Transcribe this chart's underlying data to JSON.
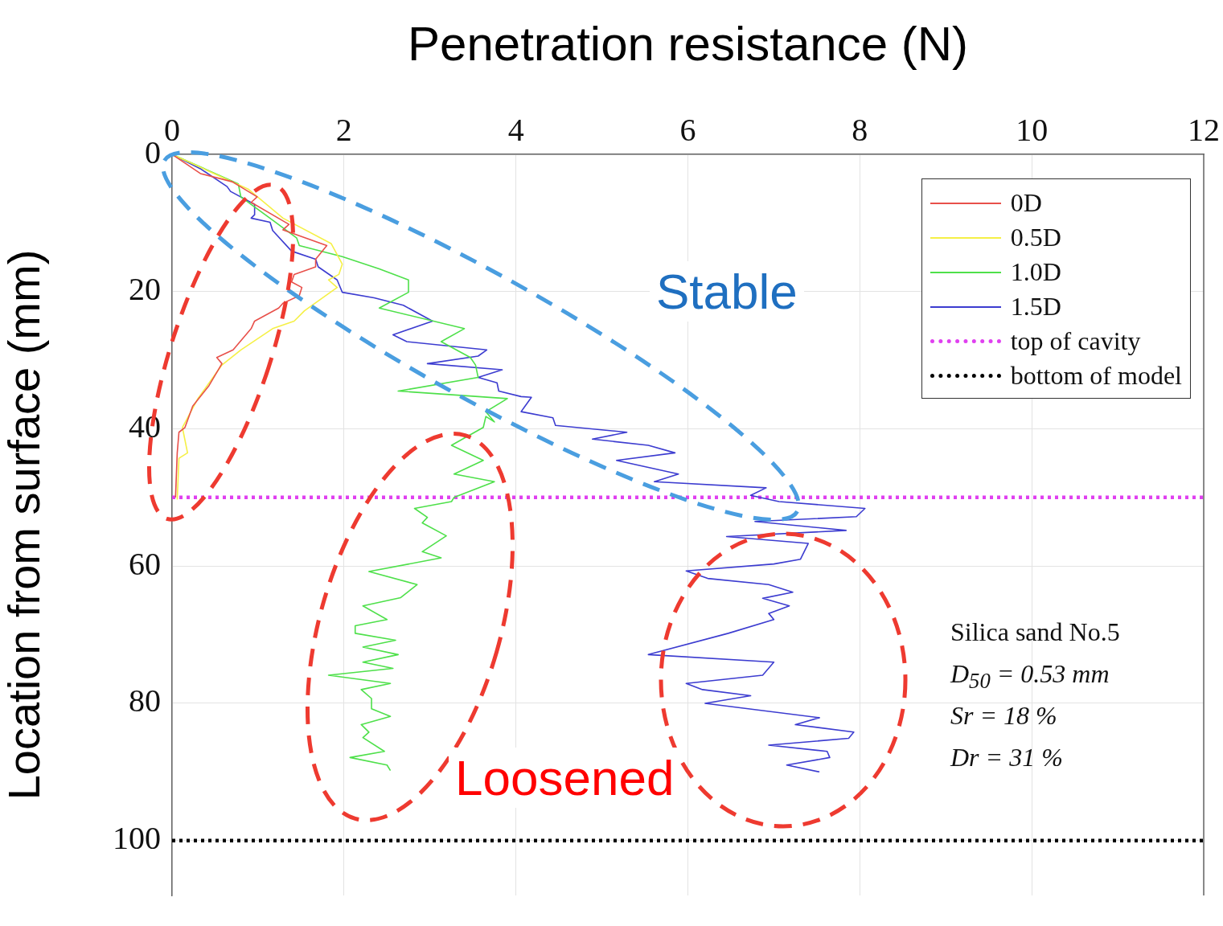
{
  "chart_data": {
    "type": "line",
    "xlabel": "Penetration resistance (N)",
    "ylabel": "Location from surface (mm)",
    "xlim": [
      0,
      12
    ],
    "xticks": [
      0,
      2,
      4,
      6,
      8,
      10,
      12
    ],
    "ylim": [
      108,
      0
    ],
    "yticks": [
      0,
      20,
      40,
      60,
      80,
      100
    ],
    "grid": true,
    "legend": "top right",
    "marker": "none",
    "annotations": [
      "Stable",
      "Loosened",
      "Silica sand No.5",
      "D$_{50}$ = 0.53 mm",
      "Sr = 18 %",
      "Dr = 31 %"
    ],
    "series": [
      {
        "name": "0D",
        "color": "#e8504a",
        "line_style": "solid",
        "x": [
          0,
          0.33,
          0.7,
          0.99,
          0.92,
          1.36,
          1.29,
          1.8,
          1.67,
          1.67,
          1.42,
          1.39,
          1.51,
          1.48,
          1.29,
          1.24,
          0.96,
          0.92,
          0.71,
          0.52,
          0.58,
          0.43,
          0.24,
          0.15,
          0.08,
          0.06,
          0.04
        ],
        "values": [
          0,
          2.8,
          4,
          6.2,
          7,
          10.2,
          11,
          13.3,
          15.3,
          16.4,
          17.5,
          18.6,
          19.4,
          20.6,
          21.7,
          22.4,
          24.3,
          25.4,
          28.5,
          29.6,
          30.5,
          33.7,
          36.7,
          39.8,
          40.5,
          43.5,
          50
        ]
      },
      {
        "name": "0.5D",
        "color": "#f5f046",
        "line_style": "solid",
        "x": [
          0,
          0.89,
          1.29,
          1.85,
          1.98,
          1.94,
          1.82,
          1.92,
          1.54,
          1.42,
          1.17,
          0.8,
          0.58,
          0.3,
          0.12,
          0.18,
          0.08,
          0.06
        ],
        "values": [
          0,
          5.1,
          9.3,
          13,
          16,
          17.5,
          18.3,
          19.4,
          22.8,
          24.3,
          25.4,
          28.5,
          30.7,
          35.6,
          39.8,
          43.5,
          44.3,
          50.3
        ]
      },
      {
        "name": "1.0D",
        "color": "#4ee04a",
        "line_style": "solid",
        "x": [
          0,
          0.77,
          0.8,
          1.17,
          1.45,
          1.48,
          1.98,
          2.41,
          2.75,
          2.75,
          2.41,
          3.4,
          3.13,
          3.47,
          3.53,
          3.56,
          2.63,
          3.9,
          3.65,
          3.75,
          3.65,
          3.62,
          3.25,
          3.62,
          3.28,
          3.75,
          3.28,
          3.25,
          2.82,
          2.97,
          2.91,
          3.19,
          2.91,
          3.13,
          2.29,
          2.85,
          2.66,
          2.22,
          2.5,
          2.13,
          2.13,
          2.6,
          2.22,
          2.63,
          2.22,
          2.57,
          1.82,
          2.54,
          2.2,
          2.32,
          2.32,
          2.54,
          2.2,
          2.29,
          2.22,
          2.47,
          2.07,
          2.5,
          2.54
        ],
        "values": [
          0,
          4.3,
          6.2,
          9.6,
          12.2,
          13.3,
          14.9,
          16.7,
          18.3,
          20.1,
          22.4,
          25.4,
          27.3,
          29.6,
          30.7,
          32.5,
          34.5,
          35.6,
          37.5,
          39,
          38.2,
          39.8,
          42.4,
          44.6,
          46.6,
          47.7,
          50,
          50.6,
          51.6,
          52.9,
          53.7,
          55.6,
          57.9,
          58.8,
          60.8,
          62.7,
          64.6,
          65.8,
          67.8,
          68.7,
          69.8,
          70.8,
          71.8,
          72.9,
          74,
          74.9,
          75.9,
          77.1,
          78,
          79.3,
          80.8,
          81.9,
          83.1,
          84.2,
          85,
          87,
          87.9,
          89,
          89.8
        ]
      },
      {
        "name": "1.5D",
        "color": "#3c3cd0",
        "line_style": "solid",
        "x": [
          0,
          0.33,
          0.64,
          0.68,
          0.96,
          0.96,
          0.92,
          1.14,
          1.17,
          1.39,
          1.67,
          1.7,
          1.92,
          1.98,
          2.35,
          2.69,
          3.03,
          2.57,
          2.73,
          3.66,
          3.56,
          2.97,
          3.84,
          3.56,
          3.78,
          3.8,
          4.06,
          4.18,
          4.06,
          4.43,
          4.46,
          5.29,
          4.89,
          5.54,
          5.85,
          5.17,
          5.89,
          5.61,
          6.91,
          6.73,
          7.06,
          8.06,
          7.96,
          6.78,
          7.84,
          6.45,
          7.4,
          7.31,
          7,
          5.98,
          6.23,
          6.94,
          7.22,
          6.87,
          7.18,
          6.94,
          7,
          6.47,
          5.54,
          7,
          6.87,
          5.98,
          6.17,
          6.73,
          6.2,
          7.53,
          7.25,
          7.93,
          7.87,
          6.94,
          7.62,
          7.65,
          7.15,
          7.53
        ],
        "values": [
          0,
          2.1,
          4.7,
          5.4,
          7.3,
          8.8,
          9.3,
          9.9,
          11.1,
          14.1,
          15.3,
          16.4,
          18.3,
          20.1,
          20.9,
          22,
          24.3,
          26.3,
          27.3,
          28.5,
          29.4,
          30.5,
          31.4,
          32.5,
          33.3,
          34.5,
          35.3,
          35.4,
          37.5,
          38.4,
          39.5,
          40.5,
          41.5,
          42.4,
          43.5,
          44.6,
          46.6,
          47.7,
          48.6,
          49.7,
          50.6,
          51.6,
          52.8,
          53.5,
          54.8,
          55.7,
          56.7,
          59,
          59.7,
          60.7,
          61.8,
          62.7,
          63.8,
          64.7,
          65.8,
          66.9,
          67.8,
          69.8,
          72.9,
          74,
          75.9,
          77.1,
          78,
          78.9,
          80,
          82.1,
          83.1,
          84.2,
          85.1,
          86.1,
          87,
          87.9,
          89,
          90
        ]
      },
      {
        "name": "top of cavity",
        "color": "#e040f0",
        "line_style": "dotted",
        "x": [
          0,
          12
        ],
        "values": [
          50,
          50
        ]
      },
      {
        "name": "bottom of model",
        "color": "#000000",
        "line_style": "dotted",
        "x": [
          0,
          12
        ],
        "values": [
          100,
          100
        ]
      }
    ]
  }
}
